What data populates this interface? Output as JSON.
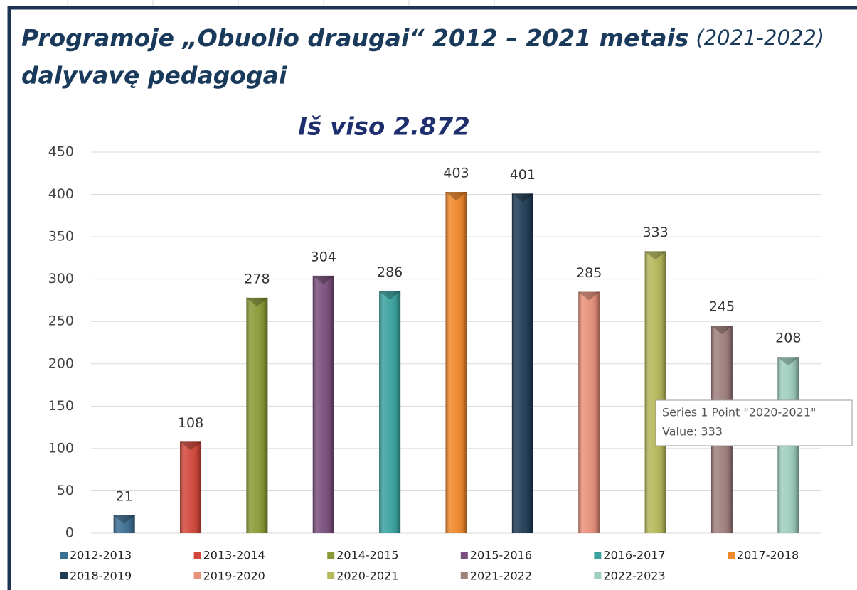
{
  "chart_data": {
    "type": "bar",
    "title": "Programoje „Obuolio draugai“  2012 – 2021 metais",
    "title_note": "(2021-2022)",
    "title_line2": "dalyvavę pedagogai",
    "subtitle": "Iš viso 2.872",
    "categories": [
      "2012-2013",
      "2013-2014",
      "2014-2015",
      "2015-2016",
      "2016-2017",
      "2017-2018",
      "2018-2019",
      "2019-2020",
      "2020-2021",
      "2021-2022",
      "2022-2023"
    ],
    "values": [
      21,
      108,
      278,
      304,
      286,
      403,
      401,
      285,
      333,
      245,
      208
    ],
    "colors": [
      "#3d6e94",
      "#d2473a",
      "#8a9a36",
      "#7a4f7e",
      "#3aa3a0",
      "#f0882c",
      "#1f3c55",
      "#e8917a",
      "#b6b85a",
      "#a0807f",
      "#9fcfc0"
    ],
    "ylim": [
      0,
      450
    ],
    "yticks": [
      0,
      50,
      100,
      150,
      200,
      250,
      300,
      350,
      400,
      450
    ],
    "grid": true,
    "legend": "bottom",
    "tooltip": [
      "Series 1 Point \"2020-2021\"",
      "Value: 333"
    ]
  }
}
